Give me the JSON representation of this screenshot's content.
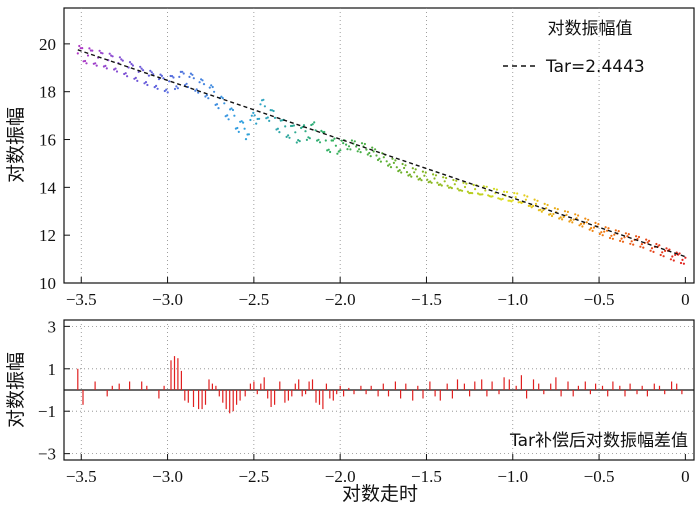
{
  "chart_data": [
    {
      "type": "scatter",
      "title": "",
      "xlabel": "",
      "ylabel": "对数振幅",
      "xlim": [
        -3.6,
        0.05
      ],
      "ylim": [
        10,
        21.5
      ],
      "xticks": [
        "−3.5",
        "−3.0",
        "−2.5",
        "−2.0",
        "−1.5",
        "−1.0",
        "−0.5",
        "0"
      ],
      "xtick_values": [
        -3.5,
        -3.0,
        -2.5,
        -2.0,
        -1.5,
        -1.0,
        -0.5,
        0.0
      ],
      "yticks": [
        "10",
        "12",
        "14",
        "16",
        "18",
        "20"
      ],
      "ytick_values": [
        10,
        12,
        14,
        16,
        18,
        20
      ],
      "grid": "vertical dotted",
      "legend": {
        "position": "top-right",
        "title": "对数振幅值",
        "entries": [
          {
            "label": "Tar=2.4443",
            "style": "dashed"
          }
        ]
      },
      "color_scale": [
        "#c030c0",
        "#6060dd",
        "#30a0e0",
        "#30b060",
        "#7ab020",
        "#e0e020",
        "#f08010",
        "#e02020"
      ],
      "series": [
        {
          "name": "Tar=2.4443",
          "kind": "fit-line",
          "x": [
            -3.52,
            0.0
          ],
          "y": [
            19.75,
            11.1
          ]
        },
        {
          "kind": "points",
          "x": [
            -3.52,
            -3.4,
            -3.3,
            -3.15,
            -3.0,
            -2.9,
            -2.75,
            -2.65,
            -2.55,
            -2.45,
            -2.35,
            -2.25,
            -2.15,
            -2.05,
            -1.95,
            -1.85,
            -1.75,
            -1.65,
            -1.55,
            -1.45,
            -1.35,
            -1.25,
            -1.15,
            -1.05,
            -0.95,
            -0.85,
            -0.75,
            -0.65,
            -0.55,
            -0.45,
            -0.35,
            -0.25,
            -0.15,
            -0.05,
            0.0
          ],
          "y": [
            19.6,
            19.4,
            19.2,
            18.7,
            18.3,
            18.6,
            18.0,
            17.2,
            16.3,
            17.4,
            16.6,
            16.2,
            16.4,
            15.7,
            15.8,
            15.6,
            15.2,
            14.8,
            14.5,
            14.3,
            14.1,
            13.9,
            13.8,
            13.6,
            13.5,
            13.2,
            12.9,
            12.7,
            12.4,
            12.1,
            11.9,
            11.7,
            11.4,
            11.1,
            11.0
          ]
        }
      ]
    },
    {
      "type": "bar",
      "title": "",
      "xlabel": "对数走时",
      "ylabel": "对数振幅",
      "xlim": [
        -3.6,
        0.05
      ],
      "ylim": [
        -3.3,
        3.3
      ],
      "xticks": [
        "−3.5",
        "−3.0",
        "−2.5",
        "−2.0",
        "−1.5",
        "−1.0",
        "−0.5",
        "0"
      ],
      "xtick_values": [
        -3.5,
        -3.0,
        -2.5,
        -2.0,
        -1.5,
        -1.0,
        -0.5,
        0.0
      ],
      "yticks": [
        "−3",
        "−1",
        "1",
        "3"
      ],
      "ytick_values": [
        -3,
        -1,
        1,
        3
      ],
      "grid": "vertical and horizontal dotted",
      "legend": {
        "position": "bottom-right",
        "entries": [
          {
            "label": "Tar补偿后对数振幅差值"
          }
        ]
      },
      "color": "#e02020",
      "series": [
        {
          "name": "Tar补偿后对数振幅差值",
          "x": [
            -3.52,
            -3.49,
            -3.42,
            -3.35,
            -3.32,
            -3.28,
            -3.22,
            -3.15,
            -3.12,
            -3.05,
            -3.02,
            -2.98,
            -2.96,
            -2.94,
            -2.92,
            -2.9,
            -2.88,
            -2.85,
            -2.82,
            -2.8,
            -2.78,
            -2.76,
            -2.74,
            -2.72,
            -2.7,
            -2.68,
            -2.66,
            -2.64,
            -2.62,
            -2.6,
            -2.58,
            -2.55,
            -2.52,
            -2.5,
            -2.48,
            -2.46,
            -2.44,
            -2.42,
            -2.4,
            -2.38,
            -2.35,
            -2.32,
            -2.3,
            -2.28,
            -2.26,
            -2.24,
            -2.22,
            -2.2,
            -2.18,
            -2.16,
            -2.14,
            -2.12,
            -2.1,
            -2.08,
            -2.06,
            -2.04,
            -2.02,
            -2.0,
            -1.98,
            -1.95,
            -1.92,
            -1.88,
            -1.85,
            -1.82,
            -1.78,
            -1.75,
            -1.72,
            -1.68,
            -1.65,
            -1.62,
            -1.58,
            -1.55,
            -1.52,
            -1.48,
            -1.45,
            -1.42,
            -1.38,
            -1.35,
            -1.32,
            -1.28,
            -1.25,
            -1.22,
            -1.18,
            -1.15,
            -1.12,
            -1.08,
            -1.05,
            -1.02,
            -0.98,
            -0.95,
            -0.92,
            -0.88,
            -0.85,
            -0.82,
            -0.78,
            -0.75,
            -0.72,
            -0.68,
            -0.65,
            -0.62,
            -0.58,
            -0.55,
            -0.52,
            -0.48,
            -0.45,
            -0.42,
            -0.38,
            -0.35,
            -0.32,
            -0.28,
            -0.25,
            -0.22,
            -0.18,
            -0.15,
            -0.12,
            -0.08,
            -0.05,
            -0.02
          ],
          "values": [
            1.0,
            -0.7,
            0.4,
            -0.3,
            0.2,
            0.3,
            0.4,
            0.4,
            0.2,
            -0.4,
            0.2,
            1.4,
            1.6,
            1.5,
            0.9,
            -0.5,
            -0.6,
            -0.8,
            -0.9,
            -0.9,
            -0.7,
            0.5,
            0.3,
            0.2,
            -0.3,
            -0.6,
            -0.9,
            -1.1,
            -1.0,
            -0.7,
            -0.5,
            -0.3,
            0.3,
            0.4,
            -0.2,
            0.3,
            0.6,
            -0.4,
            -0.8,
            -0.7,
            0.4,
            -0.6,
            -0.5,
            -0.3,
            0.3,
            0.5,
            -0.3,
            -0.2,
            0.4,
            0.5,
            -0.6,
            -0.7,
            -0.9,
            0.3,
            -0.4,
            -0.5,
            -0.2,
            0.2,
            -0.3,
            0.1,
            -0.2,
            0.2,
            -0.2,
            0.2,
            -0.3,
            0.3,
            -0.3,
            0.4,
            -0.4,
            0.3,
            -0.5,
            0.2,
            -0.4,
            0.4,
            -0.3,
            -0.5,
            0.3,
            -0.4,
            0.5,
            0.3,
            -0.3,
            0.4,
            0.5,
            -0.3,
            0.4,
            -0.2,
            0.6,
            0.5,
            0.2,
            0.7,
            -0.4,
            0.5,
            0.3,
            -0.2,
            0.3,
            0.6,
            -0.3,
            0.4,
            -0.3,
            0.2,
            0.4,
            -0.2,
            0.3,
            0.2,
            -0.3,
            0.4,
            0.2,
            -0.3,
            0.3,
            -0.2,
            0.2,
            -0.3,
            0.3,
            0.2,
            -0.2,
            0.4,
            0.3,
            -0.2
          ]
        }
      ]
    }
  ]
}
